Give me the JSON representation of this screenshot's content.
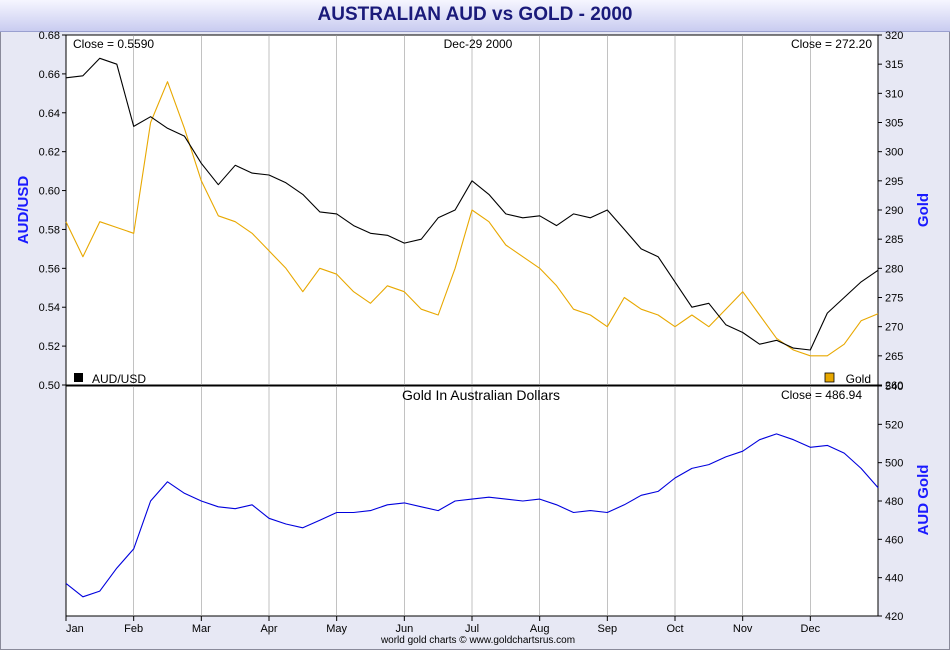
{
  "title": "AUSTRALIAN AUD vs GOLD - 2000",
  "footer": "world gold charts © www.goldchartsrus.com",
  "colors": {
    "aud": "#000000",
    "gold": "#e8a800",
    "aud_gold": "#0000dd",
    "axis_title": "#1a1aff"
  },
  "chart_data": [
    {
      "type": "line",
      "header_left": "Close = 0.5590",
      "header_center": "Dec-29  2000",
      "header_right": "Close = 272.20",
      "ylabel_left": "AUD/USD",
      "ylabel_right": "Gold",
      "ylim_left": [
        0.5,
        0.68
      ],
      "ylim_right": [
        260,
        320
      ],
      "yticks_left": [
        "0.50",
        "0.52",
        "0.54",
        "0.56",
        "0.58",
        "0.60",
        "0.62",
        "0.64",
        "0.66",
        "0.68"
      ],
      "yticks_right": [
        "260",
        "265",
        "270",
        "275",
        "280",
        "285",
        "290",
        "295",
        "300",
        "305",
        "310",
        "315",
        "320"
      ],
      "legend_left": "AUD/USD",
      "legend_right": "Gold",
      "x_months": [
        0,
        0.25,
        0.5,
        0.75,
        1,
        1.25,
        1.5,
        1.75,
        2,
        2.25,
        2.5,
        2.75,
        3,
        3.25,
        3.5,
        3.75,
        4,
        4.25,
        4.5,
        4.75,
        5,
        5.25,
        5.5,
        5.75,
        6,
        6.25,
        6.5,
        6.75,
        7,
        7.25,
        7.5,
        7.75,
        8,
        8.25,
        8.5,
        8.75,
        9,
        9.25,
        9.5,
        9.75,
        10,
        10.25,
        10.5,
        10.75,
        11,
        11.25,
        11.5,
        11.75,
        12
      ],
      "series": [
        {
          "name": "AUD/USD",
          "axis": "left",
          "values": [
            0.658,
            0.659,
            0.668,
            0.665,
            0.633,
            0.638,
            0.632,
            0.628,
            0.614,
            0.603,
            0.613,
            0.609,
            0.608,
            0.604,
            0.598,
            0.589,
            0.588,
            0.582,
            0.578,
            0.577,
            0.573,
            0.575,
            0.586,
            0.59,
            0.605,
            0.598,
            0.588,
            0.586,
            0.587,
            0.582,
            0.588,
            0.586,
            0.59,
            0.58,
            0.57,
            0.566,
            0.553,
            0.54,
            0.542,
            0.531,
            0.527,
            0.521,
            0.523,
            0.519,
            0.518,
            0.537,
            0.545,
            0.553,
            0.559
          ]
        },
        {
          "name": "Gold",
          "axis": "right",
          "values": [
            288,
            282,
            288,
            287,
            286,
            305,
            312,
            304,
            295,
            289,
            288,
            286,
            283,
            280,
            276,
            280,
            279,
            276,
            274,
            277,
            276,
            273,
            272,
            280,
            290,
            288,
            284,
            282,
            280,
            277,
            273,
            272,
            270,
            275,
            273,
            272,
            270,
            272,
            270,
            273,
            276,
            272,
            268,
            266,
            265,
            265,
            267,
            271,
            272.2
          ]
        }
      ]
    },
    {
      "type": "line",
      "title": "Gold In Australian Dollars",
      "header_right": "Close = 486.94",
      "ylabel_right": "AUD Gold",
      "ylim": [
        420,
        540
      ],
      "yticks": [
        "420",
        "440",
        "460",
        "480",
        "500",
        "520",
        "540"
      ],
      "xticks": [
        "Jan",
        "Feb",
        "Mar",
        "Apr",
        "May",
        "Jun",
        "Jul",
        "Aug",
        "Sep",
        "Oct",
        "Nov",
        "Dec"
      ],
      "x_months": [
        0,
        0.25,
        0.5,
        0.75,
        1,
        1.25,
        1.5,
        1.75,
        2,
        2.25,
        2.5,
        2.75,
        3,
        3.25,
        3.5,
        3.75,
        4,
        4.25,
        4.5,
        4.75,
        5,
        5.25,
        5.5,
        5.75,
        6,
        6.25,
        6.5,
        6.75,
        7,
        7.25,
        7.5,
        7.75,
        8,
        8.25,
        8.5,
        8.75,
        9,
        9.25,
        9.5,
        9.75,
        10,
        10.25,
        10.5,
        10.75,
        11,
        11.25,
        11.5,
        11.75,
        12
      ],
      "series": [
        {
          "name": "AUD Gold",
          "values": [
            437,
            430,
            433,
            445,
            455,
            480,
            490,
            484,
            480,
            477,
            476,
            478,
            471,
            468,
            466,
            470,
            474,
            474,
            475,
            478,
            479,
            477,
            475,
            480,
            481,
            482,
            481,
            480,
            481,
            478,
            474,
            475,
            474,
            478,
            483,
            485,
            492,
            497,
            499,
            503,
            506,
            512,
            515,
            512,
            508,
            509,
            505,
            497,
            487
          ]
        }
      ]
    }
  ]
}
